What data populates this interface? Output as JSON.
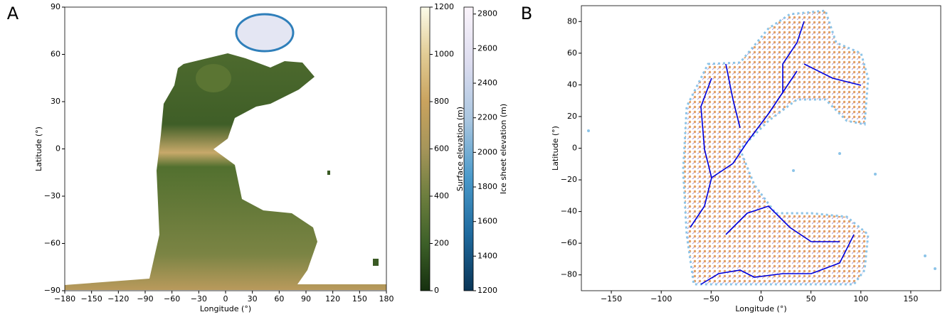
{
  "chart_data": [
    {
      "type": "heatmap",
      "panel_label": "A",
      "x_label": "Longitude (°)",
      "y_label": "Latitude (°)",
      "xlim": [
        -180,
        180
      ],
      "xticks": [
        {
          "value": -180,
          "label": "−180"
        },
        {
          "value": -150,
          "label": "−150"
        },
        {
          "value": -120,
          "label": "−120"
        },
        {
          "value": -90,
          "label": "−90"
        },
        {
          "value": -60,
          "label": "−60"
        },
        {
          "value": -30,
          "label": "−30"
        },
        0,
        30,
        60,
        90,
        120,
        150,
        180
      ],
      "ylim": [
        -90,
        90
      ],
      "yticks": [
        {
          "value": -90,
          "label": "−90"
        },
        {
          "value": -60,
          "label": "−60"
        },
        {
          "value": -30,
          "label": "−30"
        },
        0,
        30,
        60,
        90
      ],
      "colorbars": [
        {
          "label": "Surface elevation (m)",
          "lim": [
            0,
            1200
          ],
          "ticks": [
            0,
            200,
            400,
            600,
            800,
            1000,
            1200
          ],
          "colors": [
            "#16300f",
            "#3d6028",
            "#6d7e3e",
            "#a6955a",
            "#c9a35e",
            "#e2cc95",
            "#fbfbe9"
          ]
        },
        {
          "label": "Ice sheet elevation (m)",
          "lim": [
            1200,
            2840
          ],
          "ticks": [
            1200,
            1400,
            1600,
            1800,
            2000,
            2200,
            2400,
            2600,
            2800
          ],
          "colors": [
            "#0a3557",
            "#1f6a9e",
            "#4a9acb",
            "#a9c6e0",
            "#dcdcef",
            "#fbf4fb"
          ]
        }
      ]
    },
    {
      "type": "network",
      "panel_label": "B",
      "x_label": "Longitude (°)",
      "y_label": "Latitude (°)",
      "xlim": [
        -180,
        180
      ],
      "xticks": [
        {
          "value": -150,
          "label": "−150"
        },
        {
          "value": -100,
          "label": "−100"
        },
        {
          "value": -50,
          "label": "−50"
        },
        0,
        50,
        100,
        150
      ],
      "ylim": [
        -90,
        90
      ],
      "yticks": [
        {
          "value": -80,
          "label": "−80"
        },
        {
          "value": -60,
          "label": "−60"
        },
        {
          "value": -40,
          "label": "−40"
        },
        {
          "value": -20,
          "label": "−20"
        },
        0,
        20,
        40,
        60,
        80
      ]
    }
  ]
}
